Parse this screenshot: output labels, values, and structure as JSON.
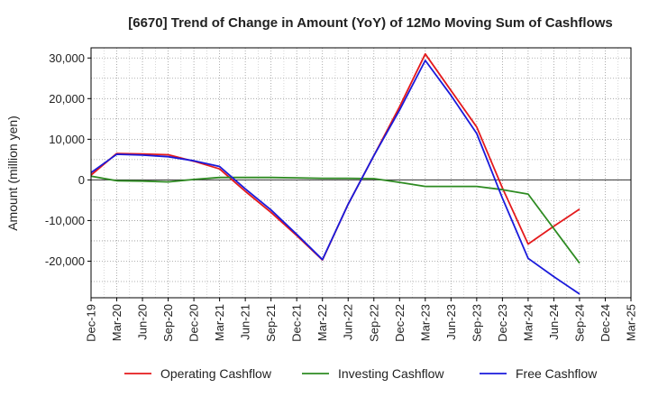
{
  "chart_data": {
    "type": "line",
    "title": "[6670]  Trend of Change in Amount (YoY) of 12Mo Moving Sum of Cashflows",
    "xlabel": "",
    "ylabel": "Amount (million yen)",
    "ylim": [
      -29000,
      32500
    ],
    "yticks": [
      30000,
      20000,
      10000,
      0,
      -10000,
      -20000
    ],
    "ytick_labels": [
      "30,000",
      "20,000",
      "10,000",
      "0",
      "-10,000",
      "-20,000"
    ],
    "categories": [
      "Dec-19",
      "Mar-20",
      "Jun-20",
      "Sep-20",
      "Dec-20",
      "Mar-21",
      "Jun-21",
      "Sep-21",
      "Dec-21",
      "Mar-22",
      "Jun-22",
      "Sep-22",
      "Dec-22",
      "Mar-23",
      "Jun-23",
      "Sep-23",
      "Dec-23",
      "Mar-24",
      "Jun-24",
      "Sep-24",
      "Dec-24",
      "Mar-25"
    ],
    "grid": true,
    "legend_position": "bottom",
    "series": [
      {
        "name": "Operating Cashflow",
        "color": "#e41a1c",
        "values": [
          1200,
          6500,
          6400,
          6200,
          4600,
          2700,
          -2800,
          -8000,
          -13700,
          -19700,
          -6000,
          6000,
          18000,
          31000,
          22000,
          13000,
          -2000,
          -15800,
          -11400,
          -7200,
          null,
          null
        ]
      },
      {
        "name": "Investing Cashflow",
        "color": "#2e8b22",
        "values": [
          900,
          -200,
          -300,
          -500,
          100,
          600,
          600,
          600,
          500,
          400,
          400,
          300,
          -600,
          -1600,
          -1600,
          -1600,
          -2400,
          -3500,
          -12000,
          -20500,
          null,
          null
        ]
      },
      {
        "name": "Free Cashflow",
        "color": "#1a1adb",
        "values": [
          1800,
          6300,
          6100,
          5700,
          4700,
          3300,
          -2200,
          -7400,
          -13400,
          -19600,
          -6000,
          6000,
          17200,
          29400,
          20800,
          11400,
          -4500,
          -19300,
          -23800,
          -28100,
          null,
          null
        ]
      }
    ]
  }
}
